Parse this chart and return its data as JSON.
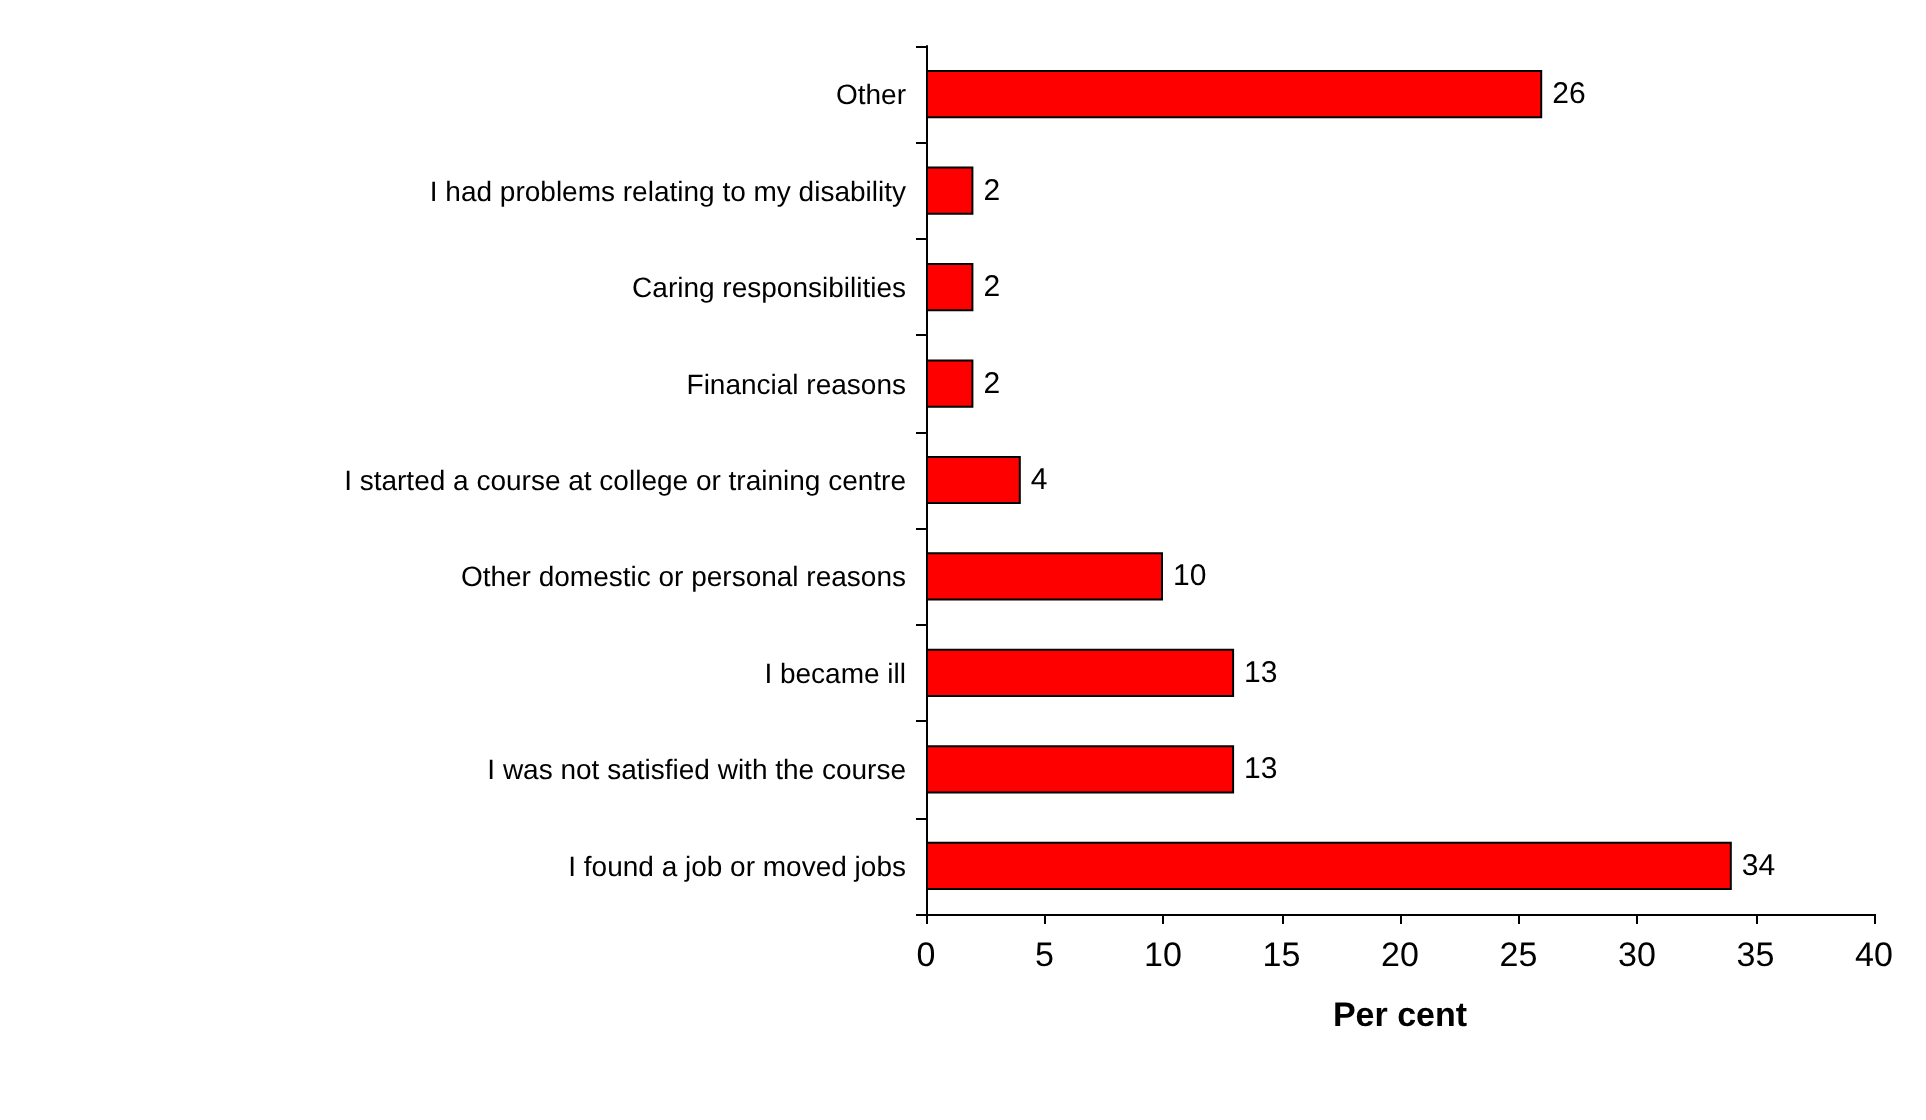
{
  "chart_data": {
    "type": "bar",
    "orientation": "horizontal",
    "xlabel": "Per cent",
    "categories": [
      "Other",
      "I had problems relating to my disability",
      "Caring responsibilities",
      "Financial reasons",
      "I started a course at college or training centre",
      "Other domestic or personal reasons",
      "I became ill",
      "I was not satisfied with the course",
      "I found a job or moved jobs"
    ],
    "values": [
      26,
      2,
      2,
      2,
      4,
      10,
      13,
      13,
      34
    ],
    "color": "#ff0000",
    "xlim": [
      0,
      40
    ],
    "xticks": [
      0,
      5,
      10,
      15,
      20,
      25,
      30,
      35,
      40
    ],
    "data_labels": true,
    "grid": false
  }
}
